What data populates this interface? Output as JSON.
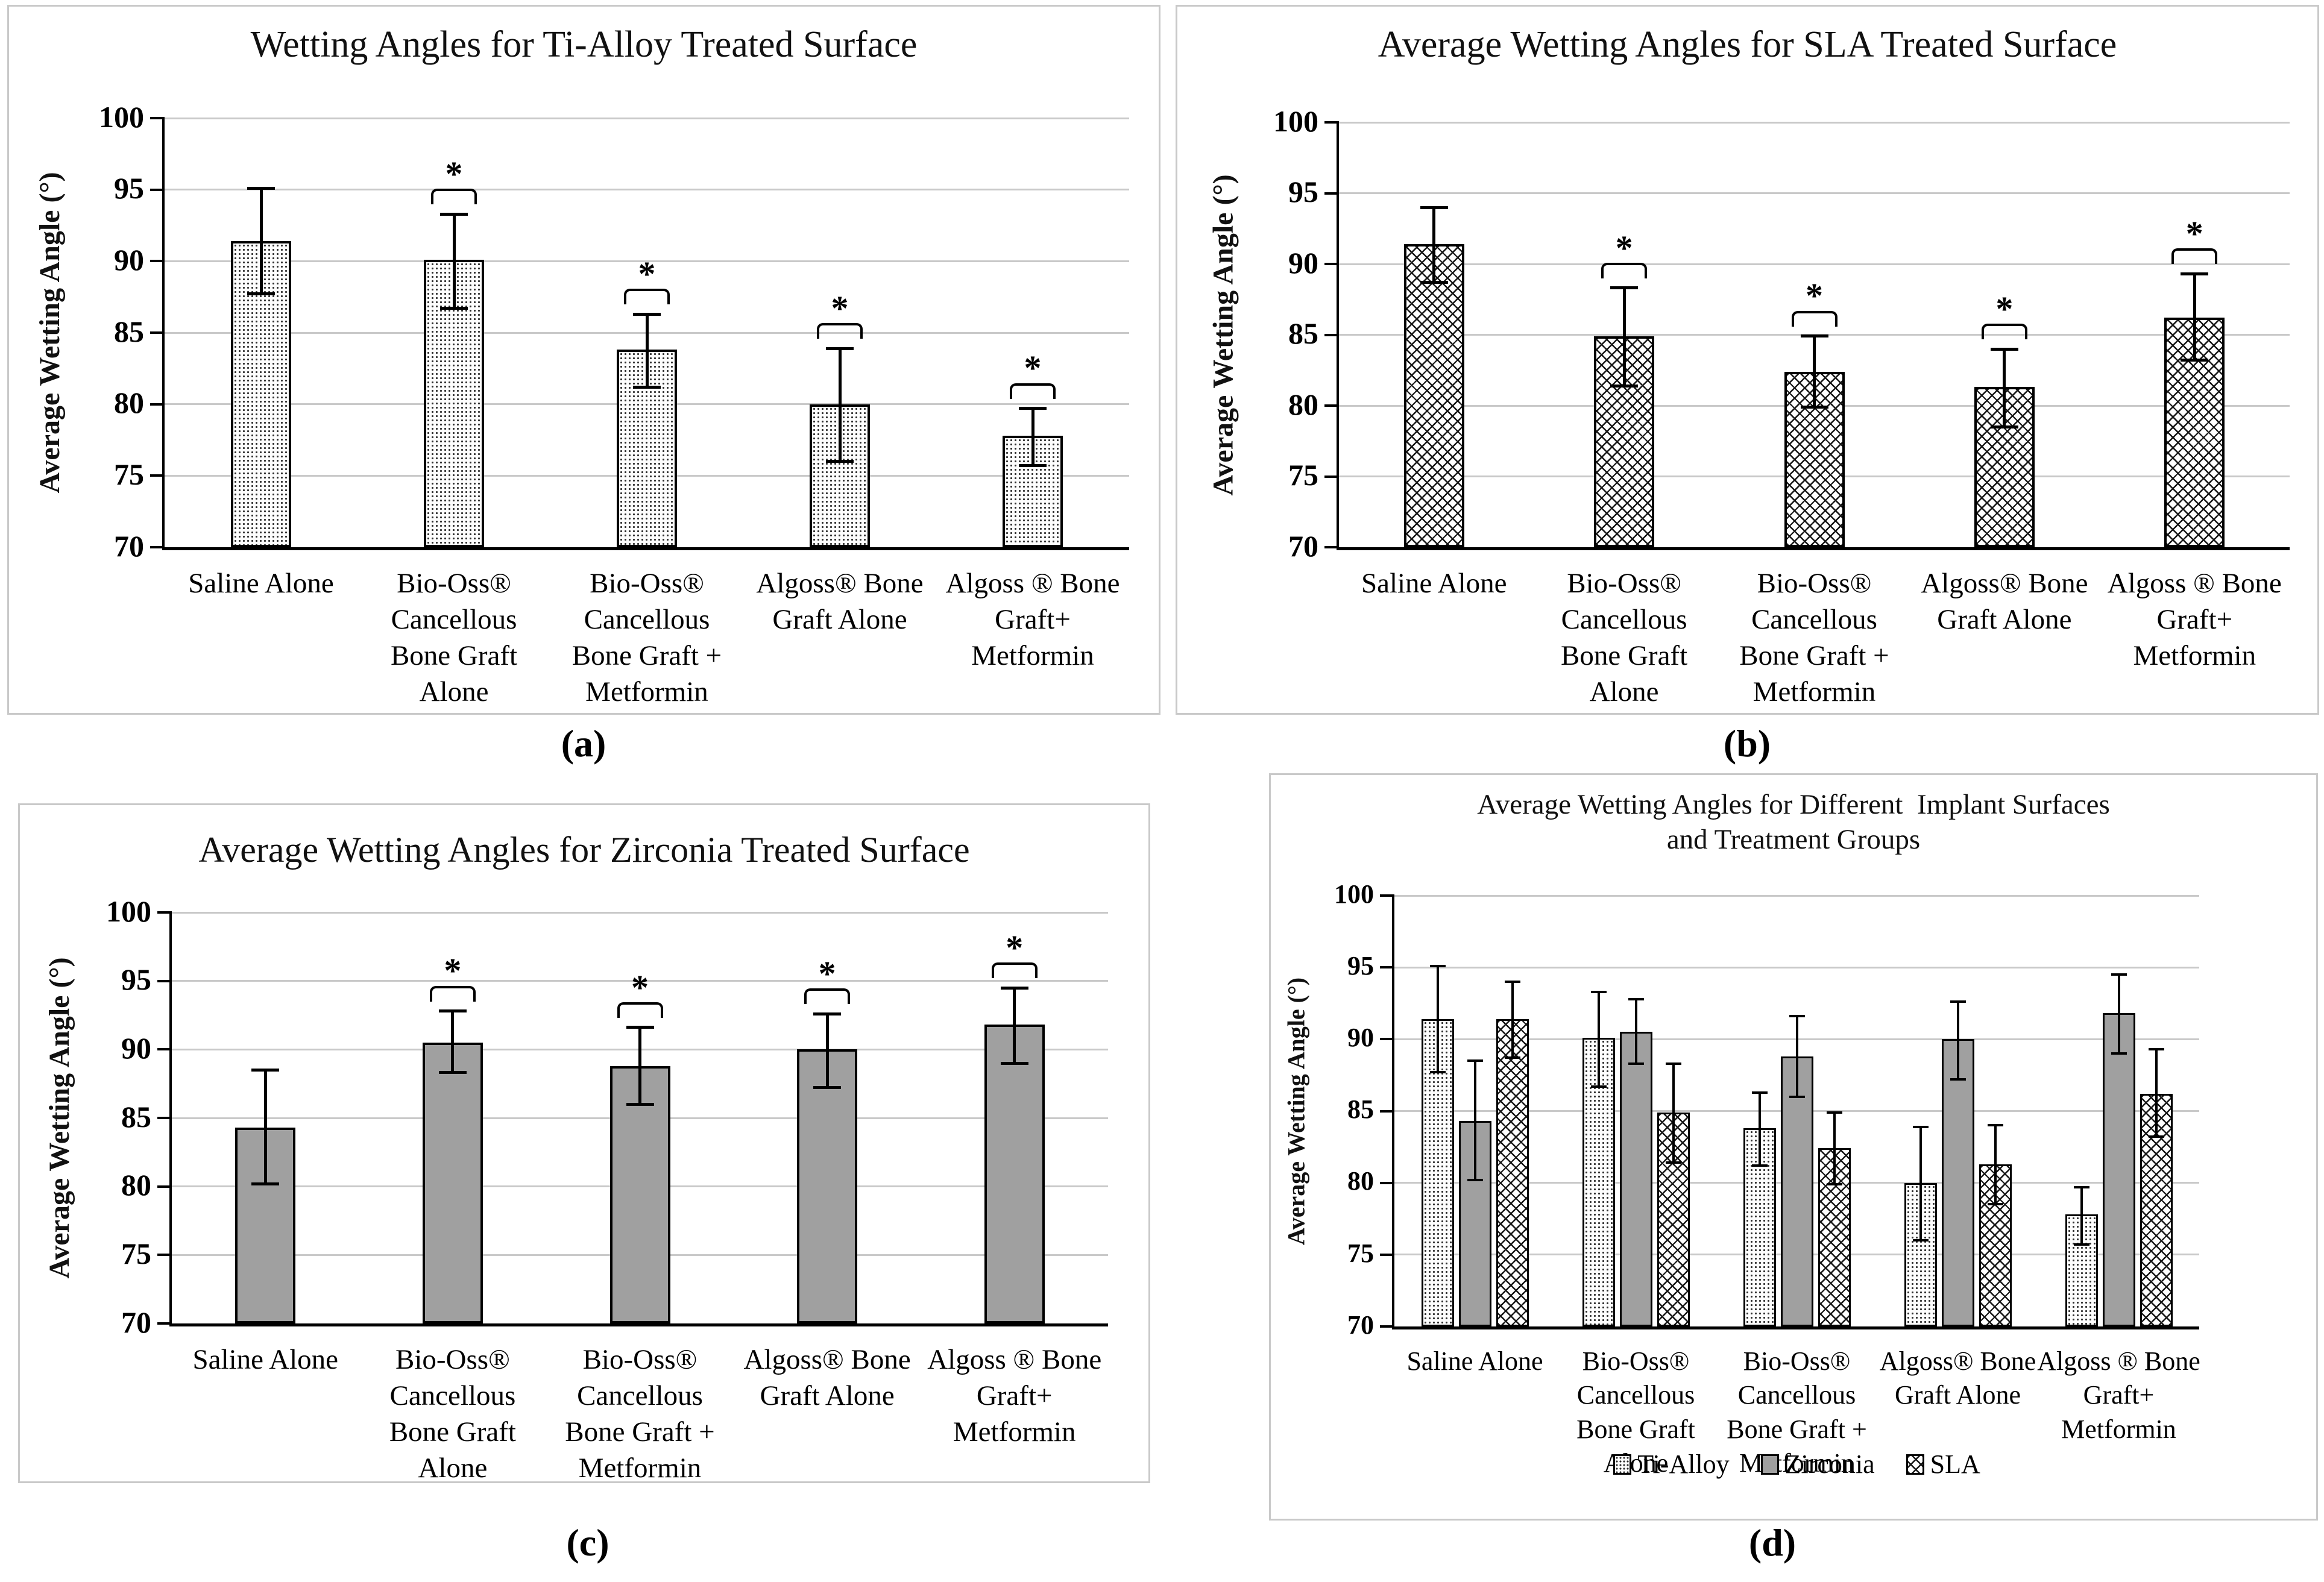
{
  "ylabel": "Average Wetting Angle (°)",
  "captions": {
    "a": "(a)",
    "b": "(b)",
    "c": "(c)",
    "d": "(d)"
  },
  "chart_data": [
    {
      "panel": "a",
      "type": "bar",
      "title": "Wetting Angles for Ti-Alloy Treated Surface",
      "ylabel": "Average Wetting Angle (°)",
      "ylim": [
        70,
        100
      ],
      "yticks": [
        70,
        75,
        80,
        85,
        90,
        95,
        100
      ],
      "grid": true,
      "sig_marker": "*",
      "caption": "(a)",
      "categories": [
        [
          "Saline Alone"
        ],
        [
          "Bio-Oss®",
          "Cancellous",
          "Bone Graft",
          "Alone"
        ],
        [
          "Bio-Oss®",
          "Cancellous",
          "Bone Graft +",
          "Metformin"
        ],
        [
          "Algoss® Bone",
          "Graft Alone"
        ],
        [
          "Algoss ® Bone",
          "Graft+",
          "Metformin"
        ]
      ],
      "series": [
        {
          "name": "Ti-Alloy",
          "pattern": "dots",
          "values": [
            91.4,
            90.1,
            83.8,
            80.0,
            77.8
          ],
          "err_high": [
            95.1,
            93.3,
            86.3,
            83.9,
            79.7
          ],
          "err_low": [
            87.7,
            86.7,
            81.2,
            76.0,
            75.7
          ],
          "significant": [
            false,
            true,
            true,
            true,
            true
          ]
        }
      ]
    },
    {
      "panel": "b",
      "type": "bar",
      "title": "Average Wetting Angles for SLA Treated Surface",
      "ylabel": "Average Wetting Angle (°)",
      "ylim": [
        70,
        100
      ],
      "yticks": [
        70,
        75,
        80,
        85,
        90,
        95,
        100
      ],
      "grid": true,
      "sig_marker": "*",
      "caption": "(b)",
      "categories": [
        [
          "Saline Alone"
        ],
        [
          "Bio-Oss®",
          "Cancellous",
          "Bone Graft",
          "Alone"
        ],
        [
          "Bio-Oss®",
          "Cancellous",
          "Bone Graft +",
          "Metformin"
        ],
        [
          "Algoss® Bone",
          "Graft Alone"
        ],
        [
          "Algoss ® Bone",
          "Graft+",
          "Metformin"
        ]
      ],
      "series": [
        {
          "name": "SLA",
          "pattern": "diag",
          "values": [
            91.4,
            84.9,
            82.4,
            81.3,
            86.2
          ],
          "err_high": [
            94.0,
            88.3,
            84.9,
            84.0,
            89.3
          ],
          "err_low": [
            88.7,
            81.4,
            79.9,
            78.5,
            83.2
          ],
          "significant": [
            false,
            true,
            true,
            true,
            true
          ]
        }
      ]
    },
    {
      "panel": "c",
      "type": "bar",
      "title": "Average Wetting Angles for Zirconia Treated Surface",
      "ylabel": "Average Wetting Angle (°)",
      "ylim": [
        70,
        100
      ],
      "yticks": [
        70,
        75,
        80,
        85,
        90,
        95,
        100
      ],
      "grid": true,
      "sig_marker": "*",
      "caption": "(c)",
      "categories": [
        [
          "Saline Alone"
        ],
        [
          "Bio-Oss®",
          "Cancellous",
          "Bone Graft",
          "Alone"
        ],
        [
          "Bio-Oss®",
          "Cancellous",
          "Bone Graft +",
          "Metformin"
        ],
        [
          "Algoss® Bone",
          "Graft Alone"
        ],
        [
          "Algoss ® Bone",
          "Graft+",
          "Metformin"
        ]
      ],
      "series": [
        {
          "name": "Zirconia",
          "pattern": "solid",
          "values": [
            84.3,
            90.5,
            88.8,
            90.0,
            91.8
          ],
          "err_high": [
            88.5,
            92.8,
            91.6,
            92.6,
            94.5
          ],
          "err_low": [
            80.2,
            88.3,
            86.0,
            87.2,
            89.0
          ],
          "significant": [
            false,
            true,
            true,
            true,
            true
          ]
        }
      ]
    },
    {
      "panel": "d",
      "type": "bar",
      "title": "Average Wetting Angles for Different  Implant Surfaces",
      "title2": "and Treatment Groups",
      "ylabel": "Average Wetting Angle (°)",
      "ylim": [
        70,
        100
      ],
      "yticks": [
        70,
        75,
        80,
        85,
        90,
        95,
        100
      ],
      "grid": true,
      "caption": "(d)",
      "legend": [
        "Ti-Alloy",
        "Zirconia",
        "SLA"
      ],
      "legend_position": "bottom",
      "categories": [
        [
          "Saline Alone"
        ],
        [
          "Bio-Oss®",
          "Cancellous",
          "Bone Graft",
          "Alone"
        ],
        [
          "Bio-Oss®",
          "Cancellous",
          "Bone Graft +",
          "Metformin"
        ],
        [
          "Algoss® Bone",
          "Graft Alone"
        ],
        [
          "Algoss ® Bone",
          "Graft+",
          "Metformin"
        ]
      ],
      "series": [
        {
          "name": "Ti-Alloy",
          "pattern": "dots",
          "values": [
            91.4,
            90.1,
            83.8,
            80.0,
            77.8
          ],
          "err_high": [
            95.1,
            93.3,
            86.3,
            83.9,
            79.7
          ],
          "err_low": [
            87.7,
            86.7,
            81.2,
            76.0,
            75.7
          ]
        },
        {
          "name": "Zirconia",
          "pattern": "solid",
          "values": [
            84.3,
            90.5,
            88.8,
            90.0,
            91.8
          ],
          "err_high": [
            88.5,
            92.8,
            91.6,
            92.6,
            94.5
          ],
          "err_low": [
            80.2,
            88.3,
            86.0,
            87.2,
            89.0
          ]
        },
        {
          "name": "SLA",
          "pattern": "diag",
          "values": [
            91.4,
            84.9,
            82.4,
            81.3,
            86.2
          ],
          "err_high": [
            94.0,
            88.3,
            84.9,
            84.0,
            89.3
          ],
          "err_low": [
            88.7,
            81.4,
            79.9,
            78.5,
            83.2
          ]
        }
      ]
    }
  ]
}
